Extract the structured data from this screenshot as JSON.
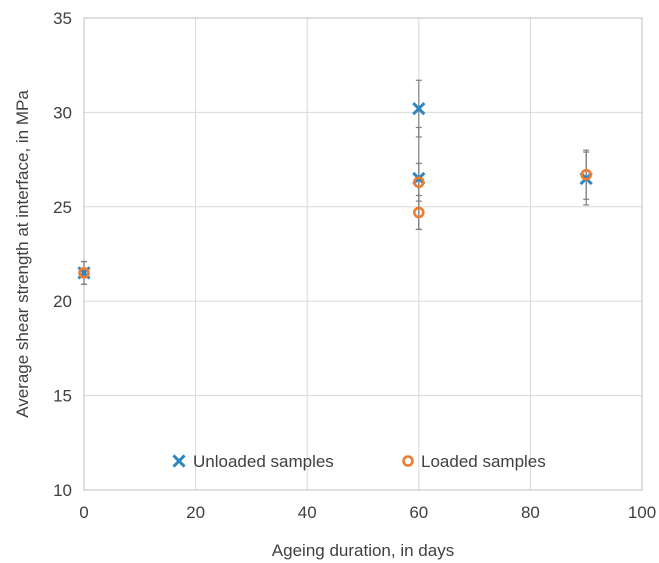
{
  "chart_data": {
    "type": "scatter",
    "title": "",
    "xlabel": "Ageing duration, in days",
    "ylabel": "Average shear strength at interface, in MPa",
    "xlim": [
      0,
      100
    ],
    "ylim": [
      10,
      35
    ],
    "xticks": [
      0,
      20,
      40,
      60,
      80,
      100
    ],
    "yticks": [
      10,
      15,
      20,
      25,
      30,
      35
    ],
    "grid": true,
    "legend_position": "bottom-center",
    "series": [
      {
        "name": "Unloaded samples",
        "marker": "x",
        "color": "#2E86C1",
        "points": [
          {
            "x": 0,
            "y": 21.5,
            "err": 0.6
          },
          {
            "x": 60,
            "y": 30.2,
            "err": 1.5
          },
          {
            "x": 60,
            "y": 26.5,
            "err": 2.7
          },
          {
            "x": 90,
            "y": 26.5,
            "err": 1.4
          }
        ]
      },
      {
        "name": "Loaded samples",
        "marker": "circle-open",
        "color": "#ED7D31",
        "points": [
          {
            "x": 0,
            "y": 21.5,
            "err": 0.6
          },
          {
            "x": 60,
            "y": 26.3,
            "err": 1.0
          },
          {
            "x": 60,
            "y": 24.7,
            "err": 0.9
          },
          {
            "x": 90,
            "y": 26.7,
            "err": 1.3
          }
        ]
      }
    ]
  }
}
